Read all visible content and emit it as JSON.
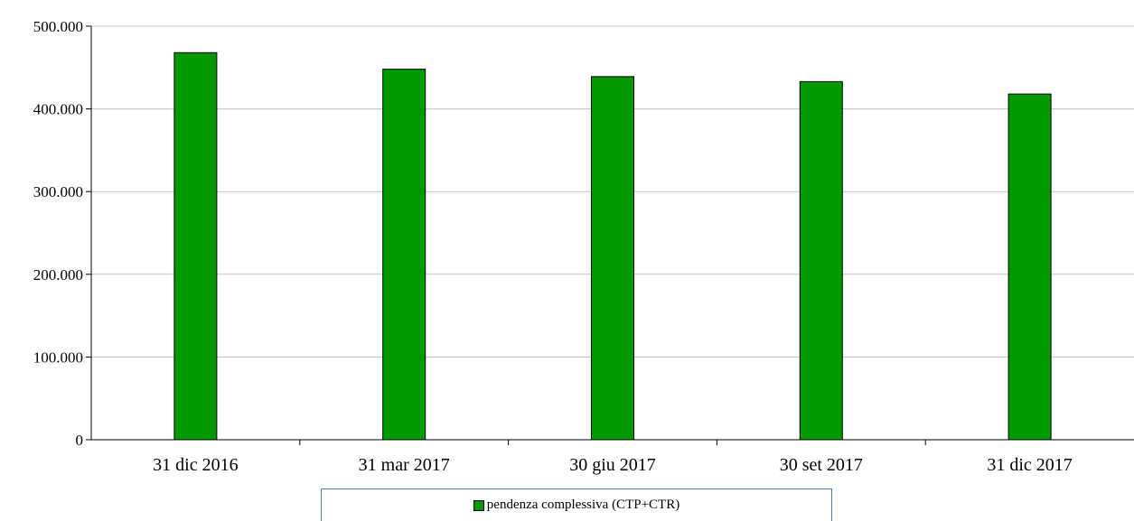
{
  "chart_data": {
    "type": "bar",
    "categories": [
      "31 dic 2016",
      "31 mar 2017",
      "30 giu 2017",
      "30 set 2017",
      "31 dic 2017"
    ],
    "series": [
      {
        "name": "pendenza complessiva (CTP+CTR)",
        "values": [
          468000,
          448000,
          439000,
          433000,
          418000
        ]
      }
    ],
    "y_ticks": [
      "0",
      "100.000",
      "200.000",
      "300.000",
      "400.000",
      "500.000"
    ],
    "ylim": [
      0,
      500000
    ],
    "grid": true,
    "legend_position": "bottom",
    "colors": {
      "bar": "#009900",
      "bar_border": "#000000",
      "grid": "#c0c0c0",
      "legend_border": "#4a7ebb"
    }
  }
}
